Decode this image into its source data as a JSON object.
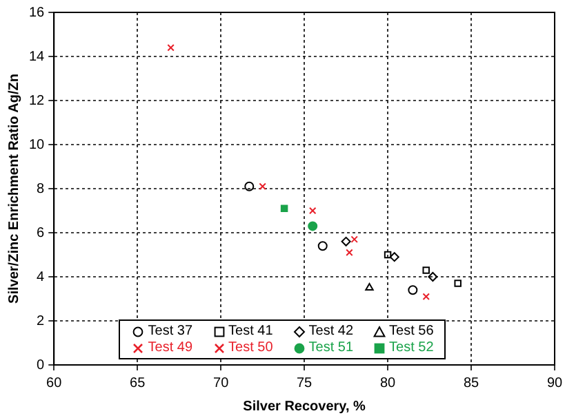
{
  "chart_data": {
    "type": "scatter",
    "xlabel": "Silver Recovery, %",
    "ylabel": "Silver/Zinc Enrichment Ratio Ag/Zn",
    "xlim": [
      60,
      90
    ],
    "xticks": [
      60,
      65,
      70,
      75,
      80,
      85,
      90
    ],
    "ylim": [
      0,
      16
    ],
    "yticks": [
      0,
      2,
      4,
      6,
      8,
      10,
      12,
      14,
      16
    ],
    "grid": true,
    "legend": "bottom",
    "series": [
      {
        "name": "Test 37",
        "color": "#000000",
        "marker": "circle",
        "x": [
          71.7,
          76.1,
          81.5
        ],
        "values": [
          8.1,
          5.4,
          3.4
        ]
      },
      {
        "name": "Test 41",
        "color": "#000000",
        "marker": "square",
        "x": [
          80.0,
          82.3,
          84.2
        ],
        "values": [
          5.0,
          4.3,
          3.7
        ]
      },
      {
        "name": "Test 42",
        "color": "#000000",
        "marker": "diamond",
        "x": [
          77.5,
          80.4,
          82.7
        ],
        "values": [
          5.6,
          4.9,
          4.0
        ]
      },
      {
        "name": "Test 56",
        "color": "#000000",
        "marker": "triangle",
        "x": [
          78.9
        ],
        "values": [
          3.5
        ]
      },
      {
        "name": "Test 49",
        "color": "#e8202a",
        "marker": "cross",
        "x": [
          75.5,
          78.0,
          82.3
        ],
        "values": [
          7.0,
          5.7,
          3.1
        ]
      },
      {
        "name": "Test 50",
        "color": "#e8202a",
        "marker": "cross",
        "x": [
          67.0,
          72.5,
          77.7
        ],
        "values": [
          14.4,
          8.1,
          5.1
        ]
      },
      {
        "name": "Test 51",
        "color": "#1aa34a",
        "marker": "circle",
        "x": [
          75.5
        ],
        "values": [
          6.3
        ]
      },
      {
        "name": "Test 52",
        "color": "#1aa34a",
        "marker": "square",
        "x": [
          73.8
        ],
        "values": [
          7.1
        ]
      }
    ]
  }
}
